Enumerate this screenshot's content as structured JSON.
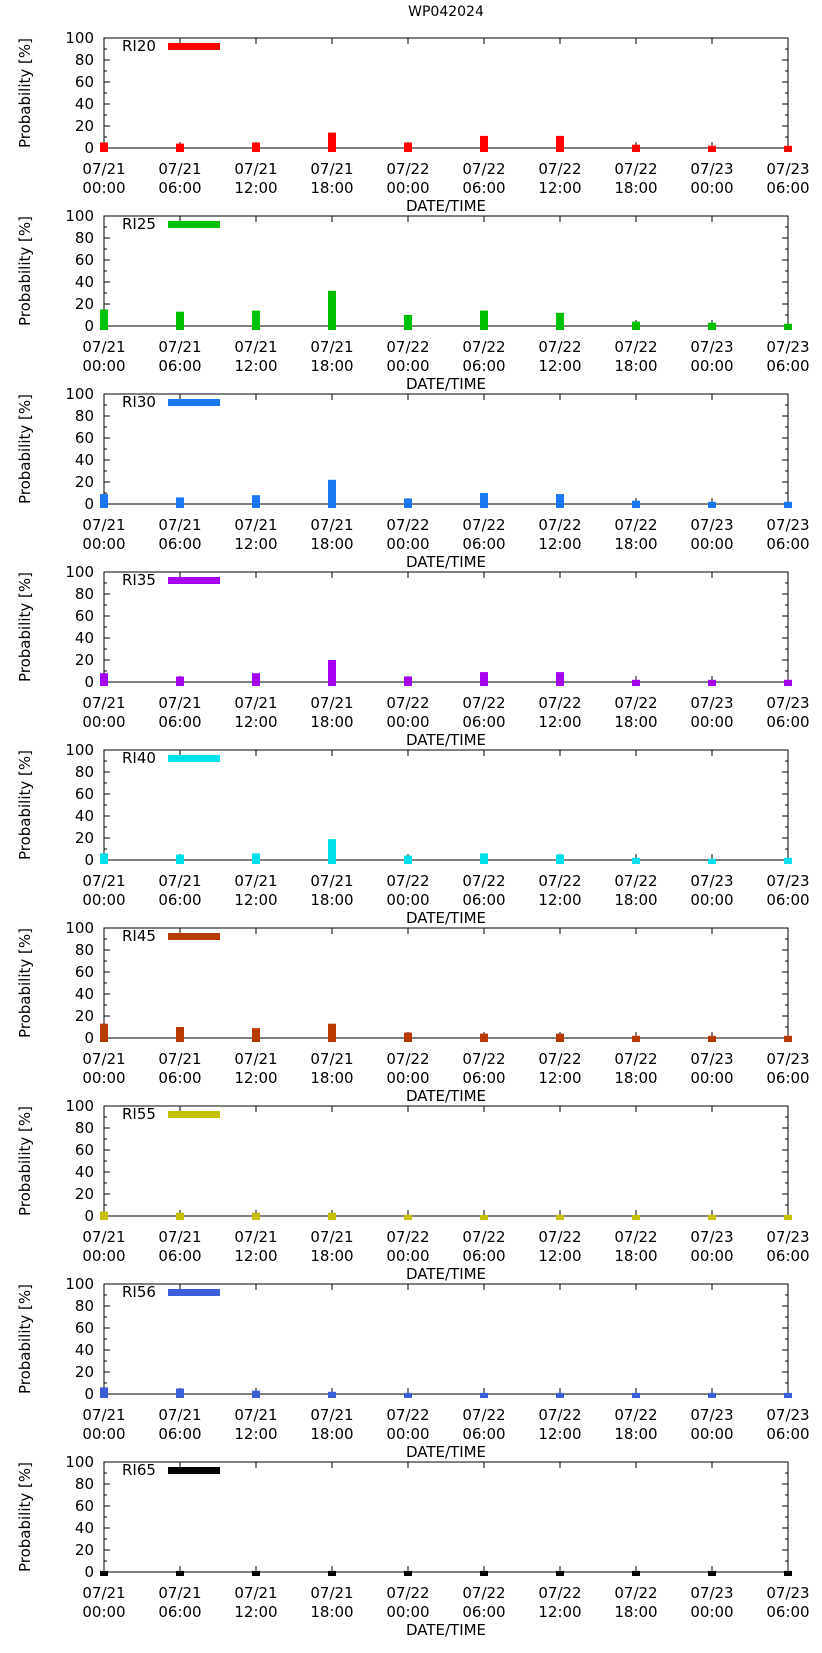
{
  "title": "WP042024",
  "chart_data": [
    {
      "type": "bar",
      "title": "",
      "legend": "RI20",
      "color": "#ff0000",
      "xlabel": "DATE/TIME",
      "ylabel": "Probability [%]",
      "ylim": [
        0,
        100
      ],
      "yticks": [
        "0",
        "20",
        "40",
        "60",
        "80",
        "100"
      ],
      "categories": [
        [
          "07/21",
          "00:00"
        ],
        [
          "07/21",
          "06:00"
        ],
        [
          "07/21",
          "12:00"
        ],
        [
          "07/21",
          "18:00"
        ],
        [
          "07/22",
          "00:00"
        ],
        [
          "07/22",
          "06:00"
        ],
        [
          "07/22",
          "12:00"
        ],
        [
          "07/22",
          "18:00"
        ],
        [
          "07/23",
          "00:00"
        ],
        [
          "07/23",
          "06:00"
        ]
      ],
      "values": [
        5,
        4,
        5,
        14,
        5,
        11,
        11,
        3,
        2,
        2
      ]
    },
    {
      "type": "bar",
      "title": "",
      "legend": "RI25",
      "color": "#00bf00",
      "xlabel": "DATE/TIME",
      "ylabel": "Probability [%]",
      "ylim": [
        0,
        100
      ],
      "yticks": [
        "0",
        "20",
        "40",
        "60",
        "80",
        "100"
      ],
      "categories": [
        [
          "07/21",
          "00:00"
        ],
        [
          "07/21",
          "06:00"
        ],
        [
          "07/21",
          "12:00"
        ],
        [
          "07/21",
          "18:00"
        ],
        [
          "07/22",
          "00:00"
        ],
        [
          "07/22",
          "06:00"
        ],
        [
          "07/22",
          "12:00"
        ],
        [
          "07/22",
          "18:00"
        ],
        [
          "07/23",
          "00:00"
        ],
        [
          "07/23",
          "06:00"
        ]
      ],
      "values": [
        15,
        13,
        14,
        32,
        10,
        14,
        12,
        4,
        3,
        2
      ]
    },
    {
      "type": "bar",
      "title": "",
      "legend": "RI30",
      "color": "#1a78f2",
      "xlabel": "DATE/TIME",
      "ylabel": "Probability [%]",
      "ylim": [
        0,
        100
      ],
      "yticks": [
        "0",
        "20",
        "40",
        "60",
        "80",
        "100"
      ],
      "categories": [
        [
          "07/21",
          "00:00"
        ],
        [
          "07/21",
          "06:00"
        ],
        [
          "07/21",
          "12:00"
        ],
        [
          "07/21",
          "18:00"
        ],
        [
          "07/22",
          "00:00"
        ],
        [
          "07/22",
          "06:00"
        ],
        [
          "07/22",
          "12:00"
        ],
        [
          "07/22",
          "18:00"
        ],
        [
          "07/23",
          "00:00"
        ],
        [
          "07/23",
          "06:00"
        ]
      ],
      "values": [
        9,
        6,
        8,
        22,
        5,
        10,
        9,
        3,
        2,
        2
      ]
    },
    {
      "type": "bar",
      "title": "",
      "legend": "RI35",
      "color": "#a800f0",
      "xlabel": "DATE/TIME",
      "ylabel": "Probability [%]",
      "ylim": [
        0,
        100
      ],
      "yticks": [
        "0",
        "20",
        "40",
        "60",
        "80",
        "100"
      ],
      "categories": [
        [
          "07/21",
          "00:00"
        ],
        [
          "07/21",
          "06:00"
        ],
        [
          "07/21",
          "12:00"
        ],
        [
          "07/21",
          "18:00"
        ],
        [
          "07/22",
          "00:00"
        ],
        [
          "07/22",
          "06:00"
        ],
        [
          "07/22",
          "12:00"
        ],
        [
          "07/22",
          "18:00"
        ],
        [
          "07/23",
          "00:00"
        ],
        [
          "07/23",
          "06:00"
        ]
      ],
      "values": [
        8,
        5,
        8,
        20,
        5,
        9,
        9,
        2,
        2,
        2
      ]
    },
    {
      "type": "bar",
      "title": "",
      "legend": "RI40",
      "color": "#00e0e8",
      "xlabel": "DATE/TIME",
      "ylabel": "Probability [%]",
      "ylim": [
        0,
        100
      ],
      "yticks": [
        "0",
        "20",
        "40",
        "60",
        "80",
        "100"
      ],
      "categories": [
        [
          "07/21",
          "00:00"
        ],
        [
          "07/21",
          "06:00"
        ],
        [
          "07/21",
          "12:00"
        ],
        [
          "07/21",
          "18:00"
        ],
        [
          "07/22",
          "00:00"
        ],
        [
          "07/22",
          "06:00"
        ],
        [
          "07/22",
          "12:00"
        ],
        [
          "07/22",
          "18:00"
        ],
        [
          "07/23",
          "00:00"
        ],
        [
          "07/23",
          "06:00"
        ]
      ],
      "values": [
        6,
        5,
        6,
        19,
        4,
        6,
        5,
        2,
        1,
        2
      ]
    },
    {
      "type": "bar",
      "title": "",
      "legend": "RI45",
      "color": "#b83a00",
      "xlabel": "DATE/TIME",
      "ylabel": "Probability [%]",
      "ylim": [
        0,
        100
      ],
      "yticks": [
        "0",
        "20",
        "40",
        "60",
        "80",
        "100"
      ],
      "categories": [
        [
          "07/21",
          "00:00"
        ],
        [
          "07/21",
          "06:00"
        ],
        [
          "07/21",
          "12:00"
        ],
        [
          "07/21",
          "18:00"
        ],
        [
          "07/22",
          "00:00"
        ],
        [
          "07/22",
          "06:00"
        ],
        [
          "07/22",
          "12:00"
        ],
        [
          "07/22",
          "18:00"
        ],
        [
          "07/23",
          "00:00"
        ],
        [
          "07/23",
          "06:00"
        ]
      ],
      "values": [
        13,
        10,
        9,
        13,
        5,
        4,
        4,
        2,
        2,
        2
      ]
    },
    {
      "type": "bar",
      "title": "",
      "legend": "RI55",
      "color": "#c4bf00",
      "xlabel": "DATE/TIME",
      "ylabel": "Probability [%]",
      "ylim": [
        0,
        100
      ],
      "yticks": [
        "0",
        "20",
        "40",
        "60",
        "80",
        "100"
      ],
      "categories": [
        [
          "07/21",
          "00:00"
        ],
        [
          "07/21",
          "06:00"
        ],
        [
          "07/21",
          "12:00"
        ],
        [
          "07/21",
          "18:00"
        ],
        [
          "07/22",
          "00:00"
        ],
        [
          "07/22",
          "06:00"
        ],
        [
          "07/22",
          "12:00"
        ],
        [
          "07/22",
          "18:00"
        ],
        [
          "07/23",
          "00:00"
        ],
        [
          "07/23",
          "06:00"
        ]
      ],
      "values": [
        4,
        3,
        3,
        3,
        1,
        1,
        1,
        1,
        1,
        1
      ]
    },
    {
      "type": "bar",
      "title": "",
      "legend": "RI56",
      "color": "#3a5fd8",
      "xlabel": "DATE/TIME",
      "ylabel": "Probability [%]",
      "ylim": [
        0,
        100
      ],
      "yticks": [
        "0",
        "20",
        "40",
        "60",
        "80",
        "100"
      ],
      "categories": [
        [
          "07/21",
          "00:00"
        ],
        [
          "07/21",
          "06:00"
        ],
        [
          "07/21",
          "12:00"
        ],
        [
          "07/21",
          "18:00"
        ],
        [
          "07/22",
          "00:00"
        ],
        [
          "07/22",
          "06:00"
        ],
        [
          "07/22",
          "12:00"
        ],
        [
          "07/22",
          "18:00"
        ],
        [
          "07/23",
          "00:00"
        ],
        [
          "07/23",
          "06:00"
        ]
      ],
      "values": [
        6,
        5,
        3,
        2,
        1,
        1,
        1,
        1,
        1,
        1
      ]
    },
    {
      "type": "bar",
      "title": "",
      "legend": "RI65",
      "color": "#000000",
      "xlabel": "DATE/TIME",
      "ylabel": "Probability [%]",
      "ylim": [
        0,
        100
      ],
      "yticks": [
        "0",
        "20",
        "40",
        "60",
        "80",
        "100"
      ],
      "categories": [
        [
          "07/21",
          "00:00"
        ],
        [
          "07/21",
          "06:00"
        ],
        [
          "07/21",
          "12:00"
        ],
        [
          "07/21",
          "18:00"
        ],
        [
          "07/22",
          "00:00"
        ],
        [
          "07/22",
          "06:00"
        ],
        [
          "07/22",
          "12:00"
        ],
        [
          "07/22",
          "18:00"
        ],
        [
          "07/23",
          "00:00"
        ],
        [
          "07/23",
          "06:00"
        ]
      ],
      "values": [
        1,
        1,
        1,
        1,
        1,
        1,
        1,
        1,
        1,
        1
      ]
    }
  ]
}
